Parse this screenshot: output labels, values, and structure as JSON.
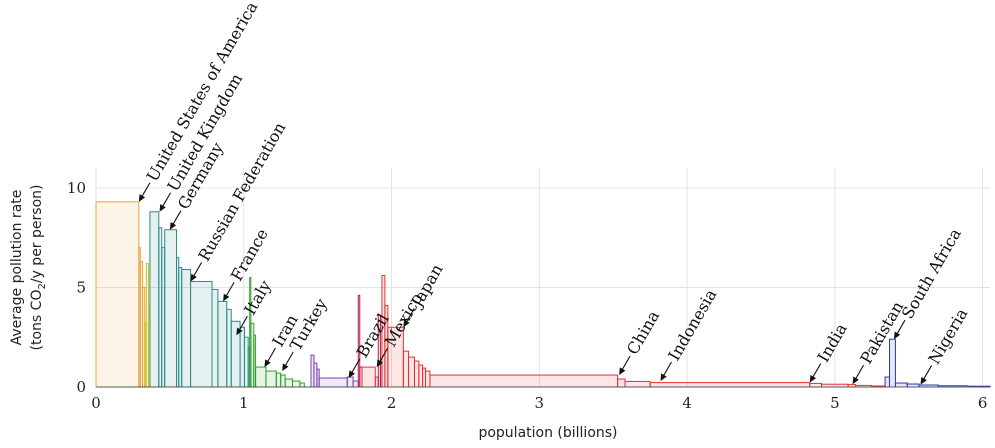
{
  "chart_data": {
    "type": "bar",
    "title": "",
    "xlabel": "population (billions)",
    "ylabel_line1": "Average pollution rate",
    "ylabel_line2_prefix": "(tons CO",
    "ylabel_line2_sub": "2",
    "ylabel_line2_suffix": "/y per person)",
    "xlim": [
      0,
      6.05
    ],
    "ylim": [
      0,
      11
    ],
    "grid": true,
    "x_ticks": [
      0,
      1,
      2,
      3,
      4,
      5,
      6
    ],
    "y_ticks": [
      0,
      5,
      10
    ],
    "x_tick_labels": [
      "0",
      "1",
      "2",
      "3",
      "4",
      "5",
      "6"
    ],
    "y_tick_labels": [
      "0",
      "5",
      "10"
    ],
    "colors": {
      "orange": "#e8a33a",
      "yellow": "#c9c21a",
      "teal": "#2c8a8a",
      "green": "#2ea02c",
      "purple": "#7a3fb5",
      "crimson": "#b0205a",
      "red": "#e83030",
      "blue": "#2a36c0"
    },
    "bars": [
      {
        "start": 0.0,
        "width": 0.29,
        "value": 9.3,
        "color": "orange"
      },
      {
        "start": 0.29,
        "width": 0.01,
        "value": 7.0,
        "color": "orange"
      },
      {
        "start": 0.3,
        "width": 0.015,
        "value": 6.3,
        "color": "orange"
      },
      {
        "start": 0.315,
        "width": 0.015,
        "value": 5.0,
        "color": "orange"
      },
      {
        "start": 0.33,
        "width": 0.01,
        "value": 3.2,
        "color": "yellow"
      },
      {
        "start": 0.34,
        "width": 0.015,
        "value": 6.2,
        "color": "yellow"
      },
      {
        "start": 0.355,
        "width": 0.01,
        "value": 4.0,
        "color": "yellow"
      },
      {
        "start": 0.365,
        "width": 0.06,
        "value": 8.8,
        "color": "teal"
      },
      {
        "start": 0.425,
        "width": 0.02,
        "value": 8.0,
        "color": "teal"
      },
      {
        "start": 0.445,
        "width": 0.02,
        "value": 7.0,
        "color": "teal"
      },
      {
        "start": 0.465,
        "width": 0.08,
        "value": 7.9,
        "color": "teal"
      },
      {
        "start": 0.545,
        "width": 0.015,
        "value": 6.5,
        "color": "teal"
      },
      {
        "start": 0.56,
        "width": 0.02,
        "value": 6.0,
        "color": "teal"
      },
      {
        "start": 0.58,
        "width": 0.06,
        "value": 5.9,
        "color": "teal"
      },
      {
        "start": 0.64,
        "width": 0.145,
        "value": 5.3,
        "color": "teal"
      },
      {
        "start": 0.785,
        "width": 0.04,
        "value": 4.9,
        "color": "teal"
      },
      {
        "start": 0.825,
        "width": 0.06,
        "value": 4.3,
        "color": "teal"
      },
      {
        "start": 0.885,
        "width": 0.03,
        "value": 3.9,
        "color": "teal"
      },
      {
        "start": 0.915,
        "width": 0.06,
        "value": 3.3,
        "color": "teal"
      },
      {
        "start": 0.975,
        "width": 0.03,
        "value": 3.0,
        "color": "teal"
      },
      {
        "start": 1.005,
        "width": 0.025,
        "value": 2.5,
        "color": "teal"
      },
      {
        "start": 1.03,
        "width": 0.01,
        "value": 2.0,
        "color": "teal"
      },
      {
        "start": 1.04,
        "width": 0.008,
        "value": 5.5,
        "color": "green"
      },
      {
        "start": 1.048,
        "width": 0.02,
        "value": 3.2,
        "color": "green"
      },
      {
        "start": 1.068,
        "width": 0.012,
        "value": 2.6,
        "color": "green"
      },
      {
        "start": 1.08,
        "width": 0.07,
        "value": 1.0,
        "color": "green"
      },
      {
        "start": 1.15,
        "width": 0.07,
        "value": 0.8,
        "color": "green"
      },
      {
        "start": 1.22,
        "width": 0.03,
        "value": 0.7,
        "color": "green"
      },
      {
        "start": 1.25,
        "width": 0.03,
        "value": 0.6,
        "color": "green"
      },
      {
        "start": 1.28,
        "width": 0.05,
        "value": 0.4,
        "color": "green"
      },
      {
        "start": 1.33,
        "width": 0.05,
        "value": 0.3,
        "color": "green"
      },
      {
        "start": 1.38,
        "width": 0.03,
        "value": 0.2,
        "color": "green"
      },
      {
        "start": 1.455,
        "width": 0.02,
        "value": 1.6,
        "color": "purple"
      },
      {
        "start": 1.475,
        "width": 0.02,
        "value": 1.2,
        "color": "purple"
      },
      {
        "start": 1.495,
        "width": 0.015,
        "value": 0.9,
        "color": "purple"
      },
      {
        "start": 1.51,
        "width": 0.19,
        "value": 0.45,
        "color": "purple"
      },
      {
        "start": 1.7,
        "width": 0.04,
        "value": 0.5,
        "color": "purple"
      },
      {
        "start": 1.74,
        "width": 0.035,
        "value": 0.3,
        "color": "purple"
      },
      {
        "start": 1.775,
        "width": 0.01,
        "value": 4.6,
        "color": "crimson"
      },
      {
        "start": 1.785,
        "width": 0.015,
        "value": 1.0,
        "color": "crimson"
      },
      {
        "start": 1.8,
        "width": 0.09,
        "value": 1.0,
        "color": "red"
      },
      {
        "start": 1.89,
        "width": 0.02,
        "value": 0.5,
        "color": "red"
      },
      {
        "start": 1.91,
        "width": 0.015,
        "value": 3.6,
        "color": "crimson"
      },
      {
        "start": 1.925,
        "width": 0.01,
        "value": 1.2,
        "color": "crimson"
      },
      {
        "start": 1.935,
        "width": 0.02,
        "value": 5.6,
        "color": "red"
      },
      {
        "start": 1.955,
        "width": 0.02,
        "value": 4.1,
        "color": "red"
      },
      {
        "start": 1.975,
        "width": 0.105,
        "value": 3.0,
        "color": "red"
      },
      {
        "start": 2.08,
        "width": 0.035,
        "value": 1.8,
        "color": "red"
      },
      {
        "start": 2.115,
        "width": 0.04,
        "value": 1.5,
        "color": "red"
      },
      {
        "start": 2.155,
        "width": 0.03,
        "value": 1.3,
        "color": "red"
      },
      {
        "start": 2.185,
        "width": 0.025,
        "value": 1.1,
        "color": "red"
      },
      {
        "start": 2.21,
        "width": 0.02,
        "value": 0.95,
        "color": "red"
      },
      {
        "start": 2.23,
        "width": 0.03,
        "value": 0.8,
        "color": "red"
      },
      {
        "start": 2.26,
        "width": 1.27,
        "value": 0.6,
        "color": "red"
      },
      {
        "start": 3.53,
        "width": 0.05,
        "value": 0.4,
        "color": "red"
      },
      {
        "start": 3.58,
        "width": 0.17,
        "value": 0.28,
        "color": "red"
      },
      {
        "start": 3.75,
        "width": 1.08,
        "value": 0.22,
        "color": "red"
      },
      {
        "start": 4.83,
        "width": 0.08,
        "value": 0.18,
        "color": "red"
      },
      {
        "start": 4.91,
        "width": 0.18,
        "value": 0.14,
        "color": "red"
      },
      {
        "start": 5.09,
        "width": 0.05,
        "value": 0.12,
        "color": "red"
      },
      {
        "start": 5.14,
        "width": 0.11,
        "value": 0.08,
        "color": "red"
      },
      {
        "start": 5.25,
        "width": 0.09,
        "value": 0.05,
        "color": "red"
      },
      {
        "start": 5.34,
        "width": 0.03,
        "value": 0.5,
        "color": "blue"
      },
      {
        "start": 5.37,
        "width": 0.04,
        "value": 2.4,
        "color": "blue"
      },
      {
        "start": 5.41,
        "width": 0.08,
        "value": 0.2,
        "color": "blue"
      },
      {
        "start": 5.49,
        "width": 0.08,
        "value": 0.15,
        "color": "blue"
      },
      {
        "start": 5.57,
        "width": 0.13,
        "value": 0.1,
        "color": "blue"
      },
      {
        "start": 5.7,
        "width": 0.2,
        "value": 0.06,
        "color": "blue"
      },
      {
        "start": 5.9,
        "width": 0.15,
        "value": 0.04,
        "color": "blue"
      }
    ],
    "annotations": [
      {
        "label": "United States of America",
        "x": 0.29,
        "y": 9.3
      },
      {
        "label": "United Kingdom",
        "x": 0.43,
        "y": 8.8
      },
      {
        "label": "Germany",
        "x": 0.5,
        "y": 7.9
      },
      {
        "label": "Russian Federation",
        "x": 0.64,
        "y": 5.3
      },
      {
        "label": "France",
        "x": 0.86,
        "y": 4.3
      },
      {
        "label": "Italy",
        "x": 0.95,
        "y": 2.6
      },
      {
        "label": "Iran",
        "x": 1.14,
        "y": 1.0
      },
      {
        "label": "Turkey",
        "x": 1.26,
        "y": 0.8
      },
      {
        "label": "Brazil",
        "x": 1.71,
        "y": 0.45
      },
      {
        "label": "Mexico",
        "x": 1.9,
        "y": 1.0
      },
      {
        "label": "Japan",
        "x": 2.08,
        "y": 3.0
      },
      {
        "label": "China",
        "x": 3.54,
        "y": 0.6
      },
      {
        "label": "Indonesia",
        "x": 3.82,
        "y": 0.3
      },
      {
        "label": "India",
        "x": 4.83,
        "y": 0.22
      },
      {
        "label": "Pakistan",
        "x": 5.12,
        "y": 0.14
      },
      {
        "label": "South Africa",
        "x": 5.4,
        "y": 2.4
      },
      {
        "label": "Nigeria",
        "x": 5.58,
        "y": 0.12
      }
    ]
  }
}
